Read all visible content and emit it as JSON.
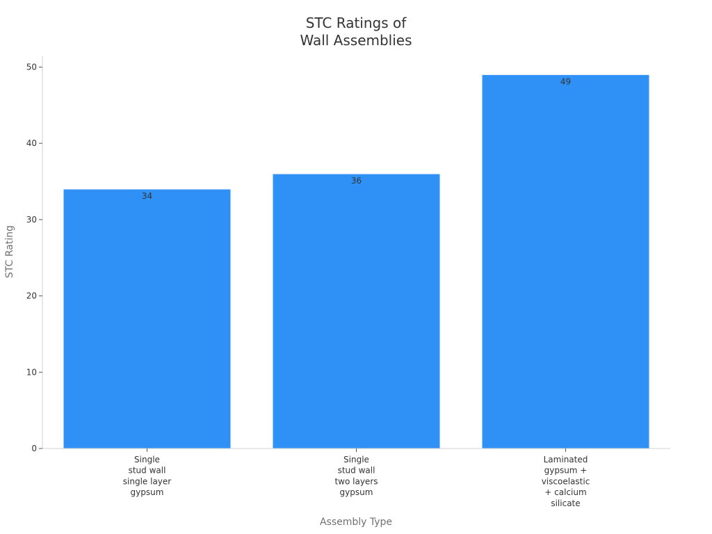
{
  "chart_data": {
    "type": "bar",
    "title": [
      "STC Ratings of",
      "Wall Assemblies"
    ],
    "xlabel": "Assembly Type",
    "ylabel": "STC Rating",
    "categories": [
      [
        "Single",
        "stud wall",
        "single layer",
        "gypsum"
      ],
      [
        "Single",
        "stud wall",
        "two layers",
        "gypsum"
      ],
      [
        "Laminated",
        "gypsum +",
        "viscoelastic",
        "+ calcium",
        "silicate"
      ]
    ],
    "values": [
      34,
      36,
      49
    ],
    "data_labels": [
      "34",
      "36",
      "49"
    ],
    "ylim": [
      0,
      51.5
    ],
    "yticks": [
      0,
      10,
      20,
      30,
      40,
      50
    ],
    "grid": false,
    "colors": {
      "bar": "#2f91f5",
      "bar_edge": "#e8f1fb"
    }
  }
}
